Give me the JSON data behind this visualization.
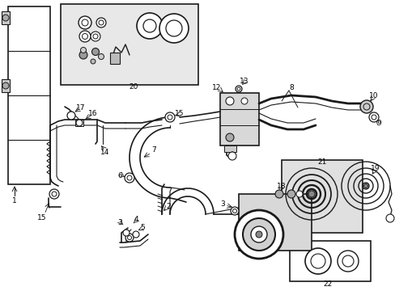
{
  "bg_color": "#ffffff",
  "lc": "#1a1a1a",
  "lw_main": 1.3,
  "lw_thin": 0.7,
  "lw_thick": 2.0,
  "figsize": [
    4.89,
    3.6
  ],
  "dpi": 100
}
